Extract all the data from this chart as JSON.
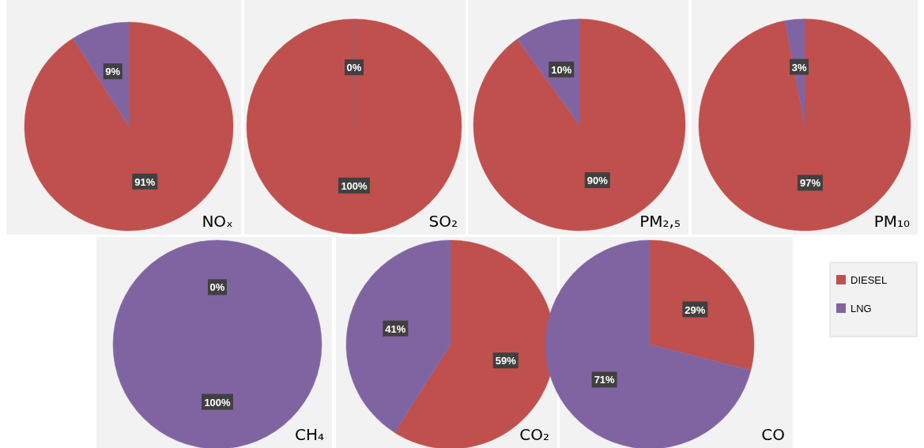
{
  "chart_data": [
    {
      "type": "pie",
      "title": "NOₓ",
      "categories": [
        null,
        null
      ],
      "values": [
        91,
        9
      ],
      "value_labels": [
        "91%",
        "9%"
      ],
      "colors": [
        "#c0504d",
        "#8064a2"
      ]
    },
    {
      "type": "pie",
      "title": "SO₂",
      "categories": [
        null,
        null
      ],
      "values": [
        100,
        0
      ],
      "value_labels": [
        "100%",
        "0%"
      ],
      "colors": [
        "#c0504d",
        "#8064a2"
      ]
    },
    {
      "type": "pie",
      "title": "PM₂,₅",
      "categories": [
        null,
        null
      ],
      "values": [
        90,
        10
      ],
      "value_labels": [
        "90%",
        "10%"
      ],
      "colors": [
        "#c0504d",
        "#8064a2"
      ]
    },
    {
      "type": "pie",
      "title": "PM₁₀",
      "categories": [
        null,
        null
      ],
      "values": [
        97,
        3
      ],
      "value_labels": [
        "97%",
        "3%"
      ],
      "colors": [
        "#c0504d",
        "#8064a2"
      ]
    },
    {
      "type": "pie",
      "title": "CH₄",
      "categories": [
        null,
        null
      ],
      "values": [
        0,
        100
      ],
      "value_labels": [
        "0%",
        "100%"
      ],
      "colors": [
        "#c0504d",
        "#8064a2"
      ]
    },
    {
      "type": "pie",
      "title": "CO₂",
      "categories": [
        null,
        null
      ],
      "values": [
        59,
        41
      ],
      "value_labels": [
        "59%",
        "41%"
      ],
      "colors": [
        "#c0504d",
        "#8064a2"
      ]
    },
    {
      "type": "pie",
      "title": "CO",
      "categories": [
        "DIESEL",
        "LNG"
      ],
      "values": [
        29,
        71
      ],
      "value_labels": [
        "29%",
        "71%"
      ],
      "colors": [
        "#c0504d",
        "#8064a2"
      ],
      "legend": "right"
    }
  ]
}
